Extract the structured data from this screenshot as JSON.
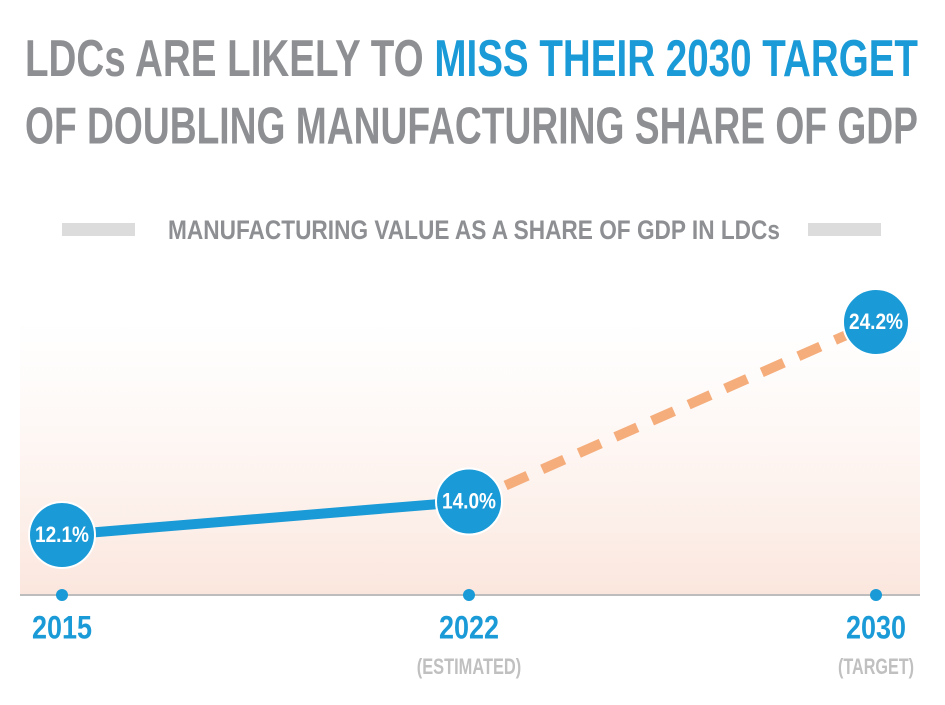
{
  "chart_data": {
    "type": "line",
    "title_parts": [
      "LDCs ARE LIKELY TO ",
      "MISS THEIR 2030 TARGET"
    ],
    "title_line2": "OF DOUBLING MANUFACTURING SHARE OF GDP",
    "subtitle": "MANUFACTURING VALUE AS A SHARE OF GDP IN LDCs",
    "categories": [
      "2015",
      "2022",
      "2030"
    ],
    "category_notes": [
      null,
      "(ESTIMATED)",
      "(TARGET)"
    ],
    "values": [
      12.1,
      14.0,
      24.2
    ],
    "value_labels": [
      "12.1%",
      "14.0%",
      "24.2%"
    ],
    "color": "#1a9ad6",
    "projected_color": "#f5ad7c",
    "projected_from": "2022"
  }
}
